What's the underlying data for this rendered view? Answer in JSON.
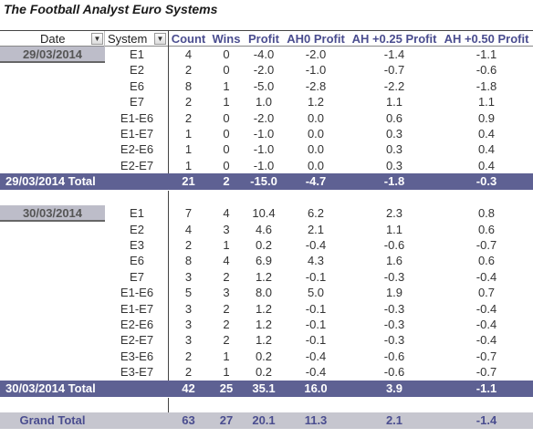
{
  "title": "The Football Analyst Euro Systems",
  "header": {
    "date": "Date",
    "system": "System",
    "count": "Count",
    "wins": "Wins",
    "profit": "Profit",
    "ah0": "AH0 Profit",
    "ah25": "AH +0.25 Profit",
    "ah50": "AH +0.50 Profit"
  },
  "groups": [
    {
      "date": "29/03/2014",
      "rows": [
        {
          "system": "E1",
          "count": "4",
          "wins": "0",
          "profit": "-4.0",
          "ah0": "-2.0",
          "ah25": "-1.4",
          "ah50": "-1.1"
        },
        {
          "system": "E2",
          "count": "2",
          "wins": "0",
          "profit": "-2.0",
          "ah0": "-1.0",
          "ah25": "-0.7",
          "ah50": "-0.6"
        },
        {
          "system": "E6",
          "count": "8",
          "wins": "1",
          "profit": "-5.0",
          "ah0": "-2.8",
          "ah25": "-2.2",
          "ah50": "-1.8"
        },
        {
          "system": "E7",
          "count": "2",
          "wins": "1",
          "profit": "1.0",
          "ah0": "1.2",
          "ah25": "1.1",
          "ah50": "1.1"
        },
        {
          "system": "E1-E6",
          "count": "2",
          "wins": "0",
          "profit": "-2.0",
          "ah0": "0.0",
          "ah25": "0.6",
          "ah50": "0.9"
        },
        {
          "system": "E1-E7",
          "count": "1",
          "wins": "0",
          "profit": "-1.0",
          "ah0": "0.0",
          "ah25": "0.3",
          "ah50": "0.4"
        },
        {
          "system": "E2-E6",
          "count": "1",
          "wins": "0",
          "profit": "-1.0",
          "ah0": "0.0",
          "ah25": "0.3",
          "ah50": "0.4"
        },
        {
          "system": "E2-E7",
          "count": "1",
          "wins": "0",
          "profit": "-1.0",
          "ah0": "0.0",
          "ah25": "0.3",
          "ah50": "0.4"
        }
      ],
      "total": {
        "label": "29/03/2014 Total",
        "count": "21",
        "wins": "2",
        "profit": "-15.0",
        "ah0": "-4.7",
        "ah25": "-1.8",
        "ah50": "-0.3"
      }
    },
    {
      "date": "30/03/2014",
      "rows": [
        {
          "system": "E1",
          "count": "7",
          "wins": "4",
          "profit": "10.4",
          "ah0": "6.2",
          "ah25": "2.3",
          "ah50": "0.8"
        },
        {
          "system": "E2",
          "count": "4",
          "wins": "3",
          "profit": "4.6",
          "ah0": "2.1",
          "ah25": "1.1",
          "ah50": "0.6"
        },
        {
          "system": "E3",
          "count": "2",
          "wins": "1",
          "profit": "0.2",
          "ah0": "-0.4",
          "ah25": "-0.6",
          "ah50": "-0.7"
        },
        {
          "system": "E6",
          "count": "8",
          "wins": "4",
          "profit": "6.9",
          "ah0": "4.3",
          "ah25": "1.6",
          "ah50": "0.6"
        },
        {
          "system": "E7",
          "count": "3",
          "wins": "2",
          "profit": "1.2",
          "ah0": "-0.1",
          "ah25": "-0.3",
          "ah50": "-0.4"
        },
        {
          "system": "E1-E6",
          "count": "5",
          "wins": "3",
          "profit": "8.0",
          "ah0": "5.0",
          "ah25": "1.9",
          "ah50": "0.7"
        },
        {
          "system": "E1-E7",
          "count": "3",
          "wins": "2",
          "profit": "1.2",
          "ah0": "-0.1",
          "ah25": "-0.3",
          "ah50": "-0.4"
        },
        {
          "system": "E2-E6",
          "count": "3",
          "wins": "2",
          "profit": "1.2",
          "ah0": "-0.1",
          "ah25": "-0.3",
          "ah50": "-0.4"
        },
        {
          "system": "E2-E7",
          "count": "3",
          "wins": "2",
          "profit": "1.2",
          "ah0": "-0.1",
          "ah25": "-0.3",
          "ah50": "-0.4"
        },
        {
          "system": "E3-E6",
          "count": "2",
          "wins": "1",
          "profit": "0.2",
          "ah0": "-0.4",
          "ah25": "-0.6",
          "ah50": "-0.7"
        },
        {
          "system": "E3-E7",
          "count": "2",
          "wins": "1",
          "profit": "0.2",
          "ah0": "-0.4",
          "ah25": "-0.6",
          "ah50": "-0.7"
        }
      ],
      "total": {
        "label": "30/03/2014 Total",
        "count": "42",
        "wins": "25",
        "profit": "35.1",
        "ah0": "16.0",
        "ah25": "3.9",
        "ah50": "-1.1"
      }
    }
  ],
  "grand_total": {
    "label": "Grand Total",
    "count": "63",
    "wins": "27",
    "profit": "20.1",
    "ah0": "11.3",
    "ah25": "2.1",
    "ah50": "-1.4"
  },
  "colors": {
    "header_text": "#4a4d8f",
    "total_bg": "#5e6193",
    "date_chip_bg": "#bdbdc9",
    "grand_total_bg": "#c6c6cf"
  },
  "icons": {
    "date_filter": "filter-dropdown-icon",
    "system_filter": "dropdown-arrow-icon"
  }
}
